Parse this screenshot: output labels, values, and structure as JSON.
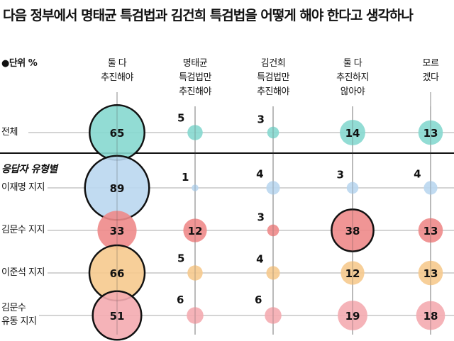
{
  "title": "다음 정부에서 명태균 특검법과 김건희 특검법을 어떻게 해야 한다고 생각하나",
  "unit_label": "●단위 %",
  "group_label": "응답자 유형별",
  "chart_data": {
    "type": "bubble-table",
    "title": "다음 정부에서 명태균 특검법과 김건희 특검법을 어떻게 해야 한다고 생각하나",
    "unit": "%",
    "categories": [
      "둘 다 추진해야",
      "명태균 특검법만 추진해야",
      "김건희 특검법만 추진해야",
      "둘 다 추진하지 않아야",
      "모르겠다"
    ],
    "category_lines": [
      [
        "둘 다",
        "추진해야"
      ],
      [
        "명태균",
        "특검법만",
        "추진해야"
      ],
      [
        "김건희",
        "특검법만",
        "추진해야"
      ],
      [
        "둘 다",
        "추진하지",
        "않아야"
      ],
      [
        "모르",
        "겠다"
      ]
    ],
    "series": [
      {
        "name": "전체",
        "label_lines": [
          "전체"
        ],
        "values": [
          65,
          5,
          3,
          14,
          13
        ],
        "color": "#86d8cf"
      },
      {
        "name": "이재명 지지",
        "label_lines": [
          "이재명 지지"
        ],
        "values": [
          89,
          1,
          4,
          3,
          4
        ],
        "color": "#bad7f0"
      },
      {
        "name": "김문수 지지",
        "label_lines": [
          "김문수 지지"
        ],
        "values": [
          33,
          12,
          3,
          38,
          13
        ],
        "color": "#ee8a8a"
      },
      {
        "name": "이준석 지지",
        "label_lines": [
          "이준석 지지"
        ],
        "values": [
          66,
          5,
          4,
          12,
          13
        ],
        "color": "#f6ca8e"
      },
      {
        "name": "김문수 유동 지지",
        "label_lines": [
          "김문수",
          "유동 지지"
        ],
        "values": [
          51,
          6,
          6,
          19,
          18
        ],
        "color": "#f4abb0"
      }
    ],
    "highlight": "row maximum outlined in black"
  }
}
